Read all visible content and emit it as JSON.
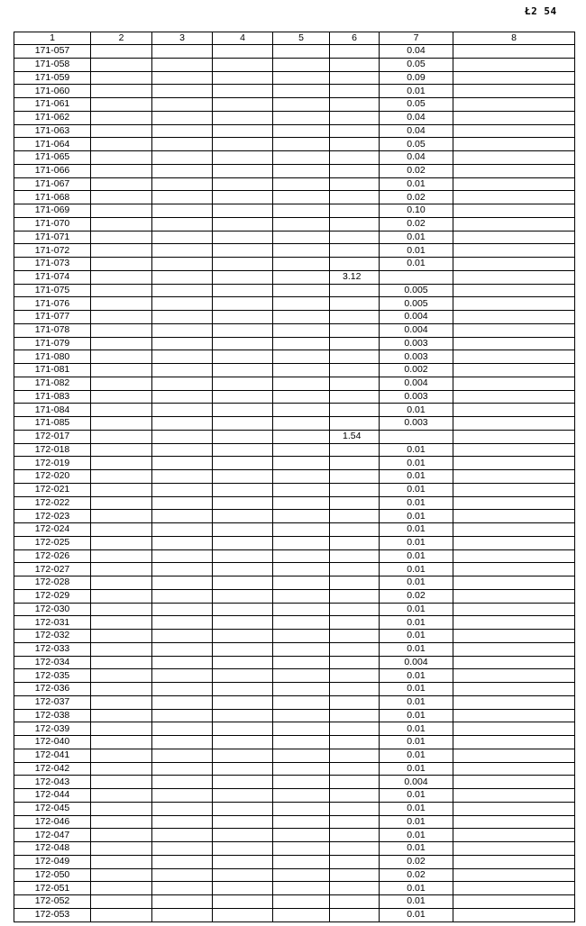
{
  "page_number": "Ł2 54",
  "table": {
    "headers": [
      "1",
      "2",
      "3",
      "4",
      "5",
      "6",
      "7",
      "8"
    ],
    "rows": [
      {
        "id": "171-057",
        "c6": "",
        "c7": "0.04"
      },
      {
        "id": "171-058",
        "c6": "",
        "c7": "0.05"
      },
      {
        "id": "171-059",
        "c6": "",
        "c7": "0.09"
      },
      {
        "id": "171-060",
        "c6": "",
        "c7": "0.01"
      },
      {
        "id": "171-061",
        "c6": "",
        "c7": "0.05"
      },
      {
        "id": "171-062",
        "c6": "",
        "c7": "0.04"
      },
      {
        "id": "171-063",
        "c6": "",
        "c7": "0.04"
      },
      {
        "id": "171-064",
        "c6": "",
        "c7": "0.05"
      },
      {
        "id": "171-065",
        "c6": "",
        "c7": "0.04"
      },
      {
        "id": "171-066",
        "c6": "",
        "c7": "0.02"
      },
      {
        "id": "171-067",
        "c6": "",
        "c7": "0.01"
      },
      {
        "id": "171-068",
        "c6": "",
        "c7": "0.02"
      },
      {
        "id": "171-069",
        "c6": "",
        "c7": "0.10"
      },
      {
        "id": "171-070",
        "c6": "",
        "c7": "0.02"
      },
      {
        "id": "171-071",
        "c6": "",
        "c7": "0.01"
      },
      {
        "id": "171-072",
        "c6": "",
        "c7": "0.01"
      },
      {
        "id": "171-073",
        "c6": "",
        "c7": "0.01"
      },
      {
        "id": "171-074",
        "c6": "3.12",
        "c7": ""
      },
      {
        "id": "171-075",
        "c6": "",
        "c7": "0.005"
      },
      {
        "id": "171-076",
        "c6": "",
        "c7": "0.005"
      },
      {
        "id": "171-077",
        "c6": "",
        "c7": "0.004"
      },
      {
        "id": "171-078",
        "c6": "",
        "c7": "0.004"
      },
      {
        "id": "171-079",
        "c6": "",
        "c7": "0.003"
      },
      {
        "id": "171-080",
        "c6": "",
        "c7": "0.003"
      },
      {
        "id": "171-081",
        "c6": "",
        "c7": "0.002"
      },
      {
        "id": "171-082",
        "c6": "",
        "c7": "0.004"
      },
      {
        "id": "171-083",
        "c6": "",
        "c7": "0.003"
      },
      {
        "id": "171-084",
        "c6": "",
        "c7": "0.01"
      },
      {
        "id": "171-085",
        "c6": "",
        "c7": "0.003"
      },
      {
        "id": "172-017",
        "c6": "1.54",
        "c7": ""
      },
      {
        "id": "172-018",
        "c6": "",
        "c7": "0.01"
      },
      {
        "id": "172-019",
        "c6": "",
        "c7": "0.01"
      },
      {
        "id": "172-020",
        "c6": "",
        "c7": "0.01"
      },
      {
        "id": "172-021",
        "c6": "",
        "c7": "0.01"
      },
      {
        "id": "172-022",
        "c6": "",
        "c7": "0.01"
      },
      {
        "id": "172-023",
        "c6": "",
        "c7": "0.01"
      },
      {
        "id": "172-024",
        "c6": "",
        "c7": "0.01"
      },
      {
        "id": "172-025",
        "c6": "",
        "c7": "0.01"
      },
      {
        "id": "172-026",
        "c6": "",
        "c7": "0.01"
      },
      {
        "id": "172-027",
        "c6": "",
        "c7": "0.01"
      },
      {
        "id": "172-028",
        "c6": "",
        "c7": "0.01"
      },
      {
        "id": "172-029",
        "c6": "",
        "c7": "0.02"
      },
      {
        "id": "172-030",
        "c6": "",
        "c7": "0.01"
      },
      {
        "id": "172-031",
        "c6": "",
        "c7": "0.01"
      },
      {
        "id": "172-032",
        "c6": "",
        "c7": "0.01"
      },
      {
        "id": "172-033",
        "c6": "",
        "c7": "0.01"
      },
      {
        "id": "172-034",
        "c6": "",
        "c7": "0.004"
      },
      {
        "id": "172-035",
        "c6": "",
        "c7": "0.01"
      },
      {
        "id": "172-036",
        "c6": "",
        "c7": "0.01"
      },
      {
        "id": "172-037",
        "c6": "",
        "c7": "0.01"
      },
      {
        "id": "172-038",
        "c6": "",
        "c7": "0.01"
      },
      {
        "id": "172-039",
        "c6": "",
        "c7": "0.01"
      },
      {
        "id": "172-040",
        "c6": "",
        "c7": "0.01"
      },
      {
        "id": "172-041",
        "c6": "",
        "c7": "0.01"
      },
      {
        "id": "172-042",
        "c6": "",
        "c7": "0.01"
      },
      {
        "id": "172-043",
        "c6": "",
        "c7": "0.004"
      },
      {
        "id": "172-044",
        "c6": "",
        "c7": "0.01"
      },
      {
        "id": "172-045",
        "c6": "",
        "c7": "0.01"
      },
      {
        "id": "172-046",
        "c6": "",
        "c7": "0.01"
      },
      {
        "id": "172-047",
        "c6": "",
        "c7": "0.01"
      },
      {
        "id": "172-048",
        "c6": "",
        "c7": "0.01"
      },
      {
        "id": "172-049",
        "c6": "",
        "c7": "0.02"
      },
      {
        "id": "172-050",
        "c6": "",
        "c7": "0.02"
      },
      {
        "id": "172-051",
        "c6": "",
        "c7": "0.01"
      },
      {
        "id": "172-052",
        "c6": "",
        "c7": "0.01"
      },
      {
        "id": "172-053",
        "c6": "",
        "c7": "0.01"
      }
    ]
  }
}
